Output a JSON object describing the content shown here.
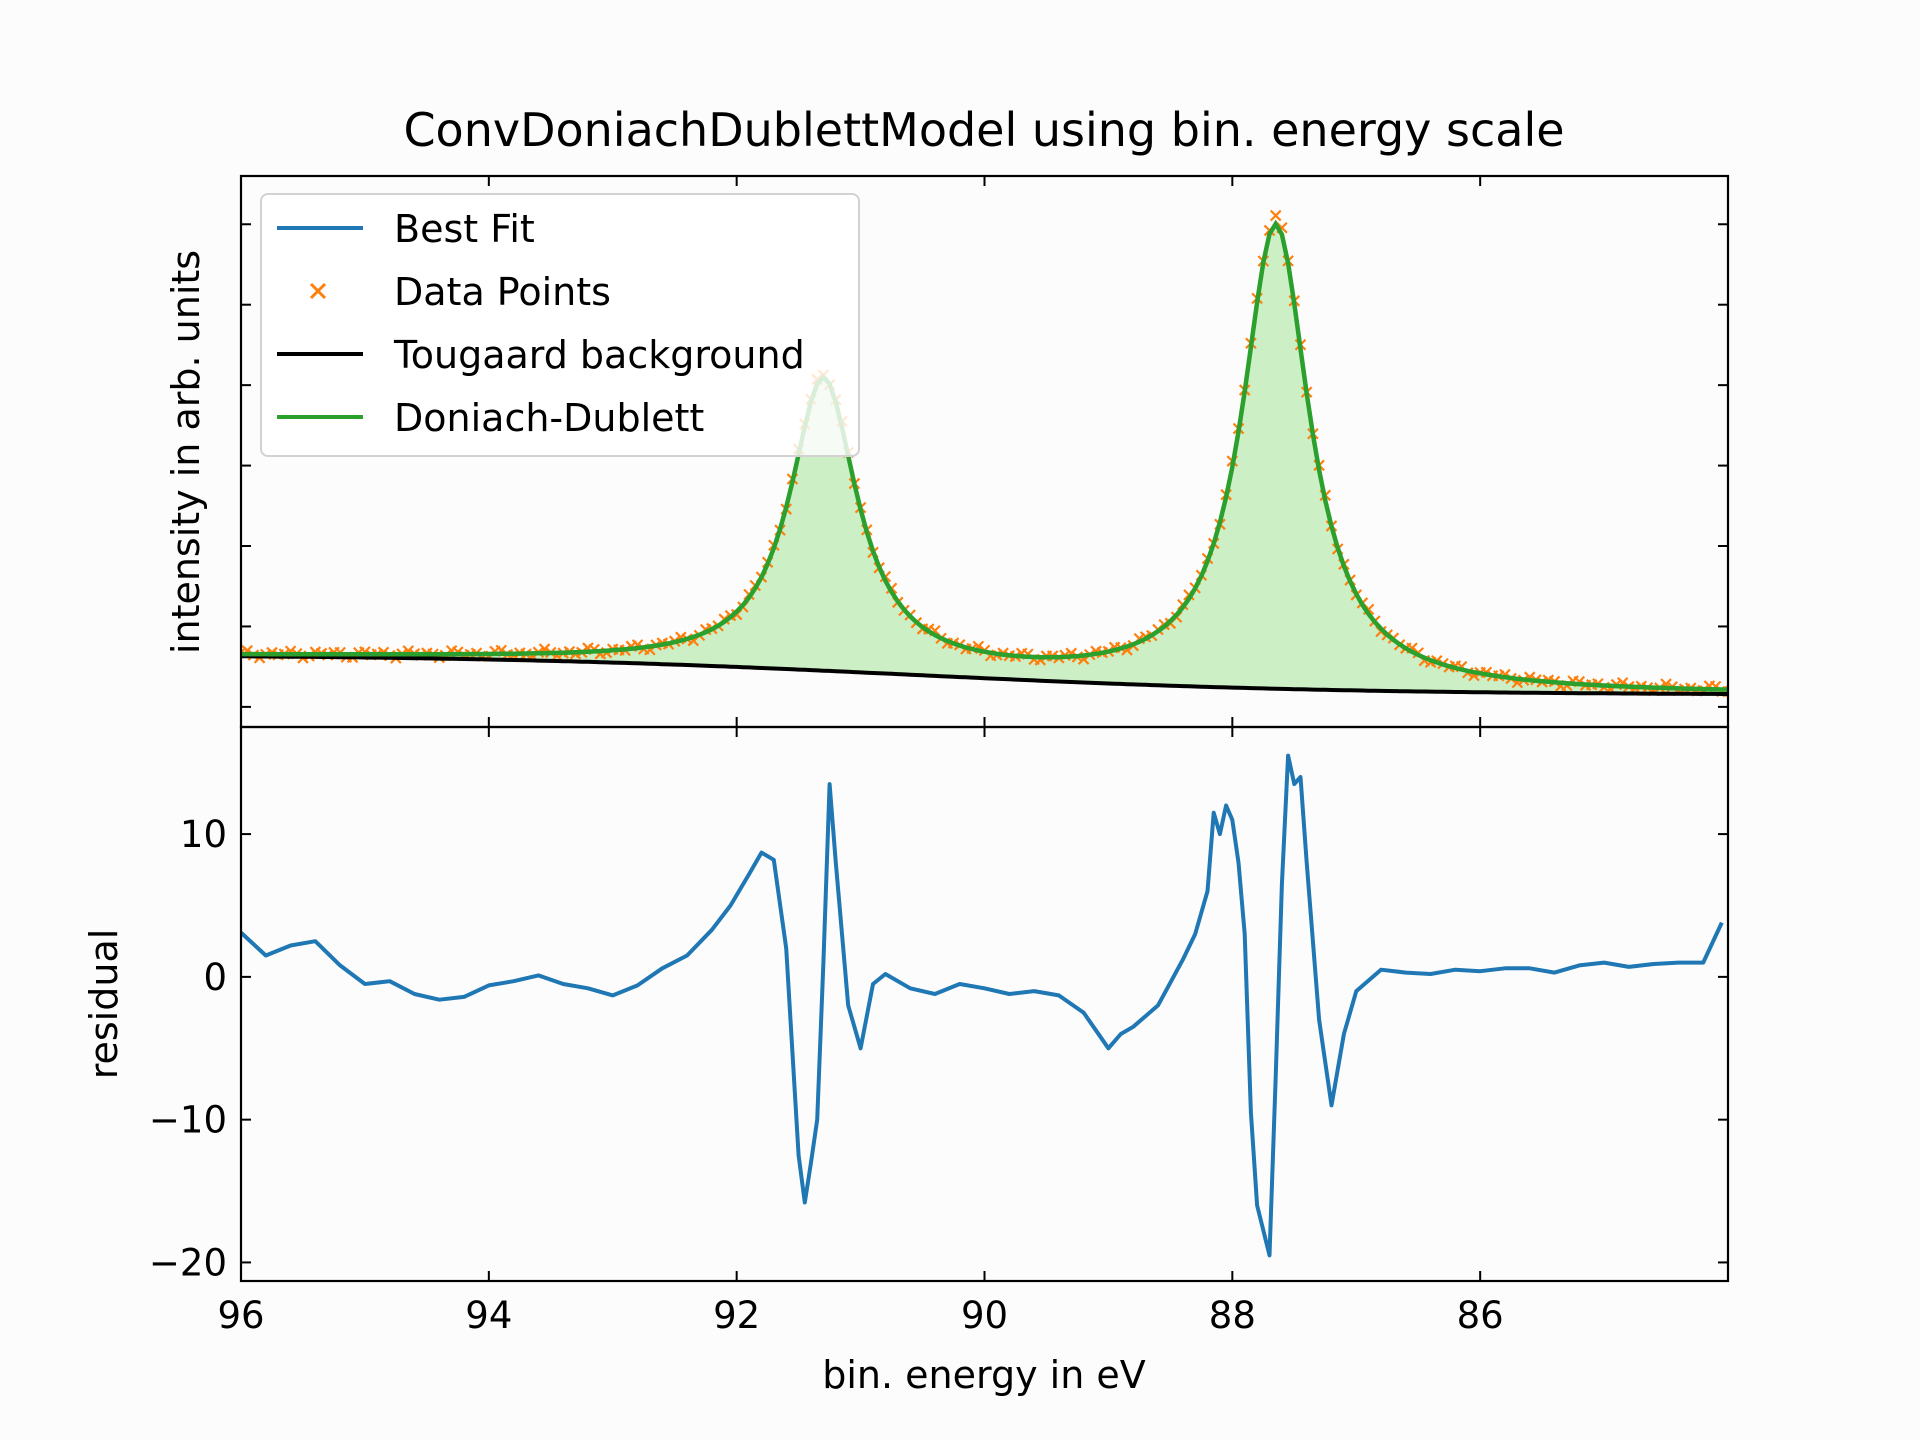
{
  "chart_data": [
    {
      "type": "line",
      "title": "ConvDoniachDublettModel using bin. energy scale",
      "xlabel": "",
      "ylabel": "intensity in arb. units",
      "xlim": [
        96.0,
        84.0
      ],
      "ylim": [
        -0.05,
        1.32
      ],
      "x_axis_reversed": true,
      "y_tick_labels_shown": false,
      "legend_position": "top-left",
      "components": {
        "peak1_center": 91.3,
        "peak1_height": 0.72,
        "peak2_center": 87.65,
        "peak2_height": 1.15,
        "lorentz_width": 0.33,
        "sampled_x_step": 0.05,
        "background_start": 0.13,
        "background_end": 0.03
      },
      "series": [
        {
          "name": "Best Fit",
          "style": "line",
          "color": "#1f77b4",
          "note": "coincides with Doniach-Dublett curve"
        },
        {
          "name": "Data Points",
          "style": "x-markers",
          "color": "#ff7f0e"
        },
        {
          "name": "Tougaard background",
          "style": "line",
          "color": "#000000"
        },
        {
          "name": "Doniach-Dublett",
          "style": "line with fill",
          "color": "#2ca02c",
          "fill_color": "#ccefc6"
        }
      ]
    },
    {
      "type": "line",
      "title": "",
      "xlabel": "bin. energy in eV",
      "ylabel": "residual",
      "xlim": [
        96.0,
        84.0
      ],
      "ylim": [
        -21.3,
        17.5
      ],
      "x_ticks": [
        96,
        94,
        92,
        90,
        88,
        86
      ],
      "x_tick_labels": [
        "96",
        "94",
        "92",
        "90",
        "88",
        "86"
      ],
      "y_ticks": [
        10,
        0,
        -10,
        -20
      ],
      "y_tick_labels": [
        "10",
        "0",
        "−10",
        "−20"
      ],
      "series": [
        {
          "name": "residual",
          "color": "#1f77b4",
          "x": [
            96.0,
            95.8,
            95.6,
            95.4,
            95.2,
            95.0,
            94.8,
            94.6,
            94.4,
            94.2,
            94.0,
            93.8,
            93.6,
            93.4,
            93.2,
            93.0,
            92.8,
            92.6,
            92.4,
            92.2,
            92.05,
            91.9,
            91.8,
            91.7,
            91.6,
            91.5,
            91.45,
            91.4,
            91.35,
            91.3,
            91.25,
            91.2,
            91.1,
            91.0,
            90.9,
            90.8,
            90.6,
            90.4,
            90.2,
            90.0,
            89.8,
            89.6,
            89.4,
            89.2,
            89.0,
            88.9,
            88.8,
            88.6,
            88.4,
            88.3,
            88.2,
            88.15,
            88.1,
            88.05,
            88.0,
            87.95,
            87.9,
            87.85,
            87.8,
            87.7,
            87.65,
            87.6,
            87.55,
            87.5,
            87.45,
            87.4,
            87.3,
            87.2,
            87.1,
            87.0,
            86.8,
            86.6,
            86.4,
            86.2,
            86.0,
            85.8,
            85.6,
            85.4,
            85.2,
            85.0,
            84.8,
            84.6,
            84.4,
            84.2,
            84.05
          ],
          "y": [
            3.1,
            1.5,
            2.2,
            2.5,
            0.8,
            -0.5,
            -0.3,
            -1.2,
            -1.6,
            -1.4,
            -0.6,
            -0.3,
            0.1,
            -0.5,
            -0.8,
            -1.3,
            -0.6,
            0.6,
            1.5,
            3.3,
            5.0,
            7.2,
            8.7,
            8.2,
            2.0,
            -12.5,
            -15.8,
            -13.0,
            -10.0,
            1.0,
            13.5,
            8.0,
            -2.0,
            -5.0,
            -0.5,
            0.2,
            -0.8,
            -1.2,
            -0.5,
            -0.8,
            -1.2,
            -1.0,
            -1.3,
            -2.5,
            -5.0,
            -4.0,
            -3.5,
            -2.0,
            1.2,
            3.0,
            6.0,
            11.5,
            10.0,
            12.0,
            11.0,
            8.0,
            3.0,
            -9.5,
            -16.0,
            -19.5,
            -7.0,
            6.5,
            15.5,
            13.5,
            14.0,
            8.0,
            -3.0,
            -9.0,
            -4.0,
            -1.0,
            0.5,
            0.3,
            0.2,
            0.5,
            0.4,
            0.6,
            0.6,
            0.3,
            0.8,
            1.0,
            0.7,
            0.9,
            1.0,
            1.0,
            3.8
          ]
        }
      ]
    }
  ]
}
